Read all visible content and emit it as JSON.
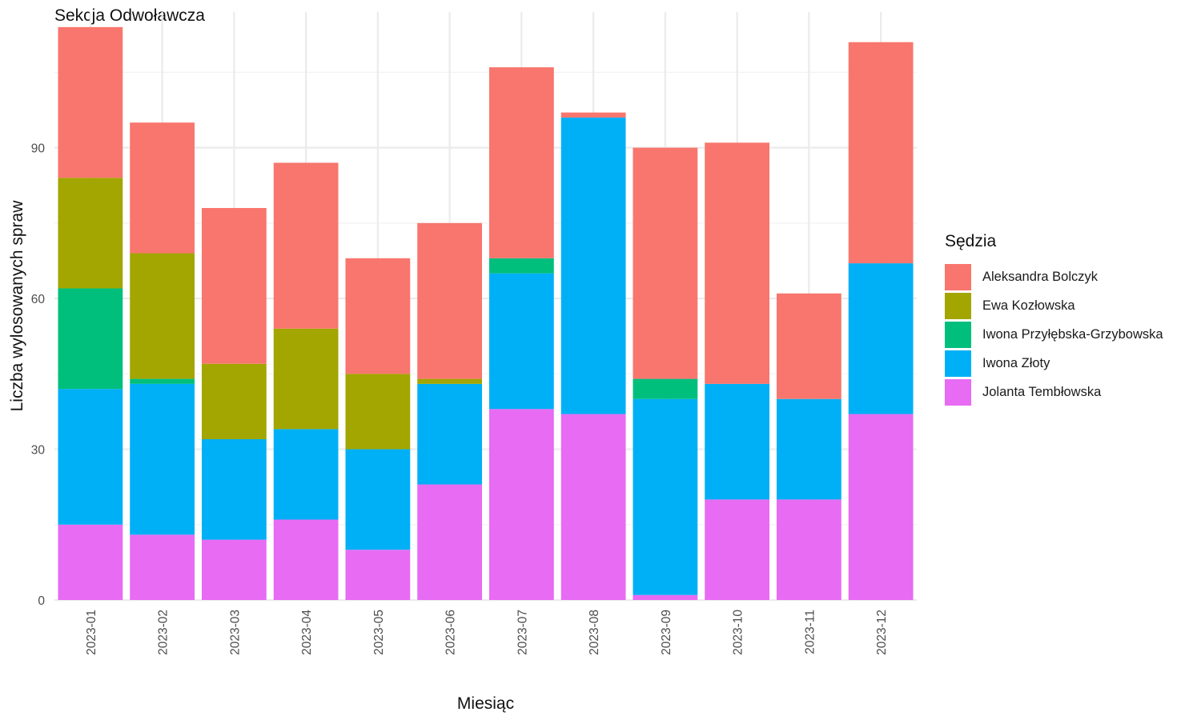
{
  "chart_data": {
    "type": "bar",
    "stacked": true,
    "title": "Sekcja Odwoławcza",
    "xlabel": "Miesiąc",
    "ylabel": "Liczba wylosowanych spraw",
    "ylim": [
      0,
      117
    ],
    "yticks": [
      0,
      30,
      60,
      90
    ],
    "grid": true,
    "legend_title": "Sędzia",
    "legend_position": "right",
    "categories": [
      "2023-01",
      "2023-02",
      "2023-03",
      "2023-04",
      "2023-05",
      "2023-06",
      "2023-07",
      "2023-08",
      "2023-09",
      "2023-10",
      "2023-11",
      "2023-12"
    ],
    "series": [
      {
        "name": "Aleksandra Bolczyk",
        "color": "#F8766D",
        "values": [
          30,
          26,
          31,
          33,
          23,
          31,
          38,
          1,
          46,
          48,
          21,
          44
        ]
      },
      {
        "name": "Ewa Kozłowska",
        "color": "#A3A500",
        "values": [
          22,
          25,
          15,
          20,
          15,
          1,
          0,
          0,
          0,
          0,
          0,
          0
        ]
      },
      {
        "name": "Iwona Przyłębska-Grzybowska",
        "color": "#00BF7D",
        "values": [
          20,
          1,
          0,
          0,
          0,
          0,
          3,
          0,
          4,
          0,
          0,
          0
        ]
      },
      {
        "name": "Iwona Złoty",
        "color": "#00B0F6",
        "values": [
          27,
          30,
          20,
          18,
          20,
          20,
          27,
          59,
          39,
          23,
          20,
          30
        ]
      },
      {
        "name": "Jolanta Tembłowska",
        "color": "#E76BF3",
        "values": [
          15,
          13,
          12,
          16,
          10,
          23,
          38,
          37,
          1,
          20,
          20,
          37
        ]
      }
    ]
  }
}
